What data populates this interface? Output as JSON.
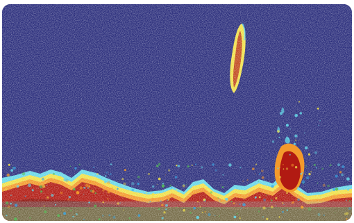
{
  "sonar": {
    "colors": {
      "water": "#2b2e7c",
      "frame": "#ffffff",
      "weak_blue": "#3aa7e6",
      "cyan": "#67d7e8",
      "green": "#57c05a",
      "yellow": "#f0e04a",
      "orange": "#f39a2c",
      "strong_red": "#b11a12",
      "dark_red": "#8e130c"
    }
  }
}
